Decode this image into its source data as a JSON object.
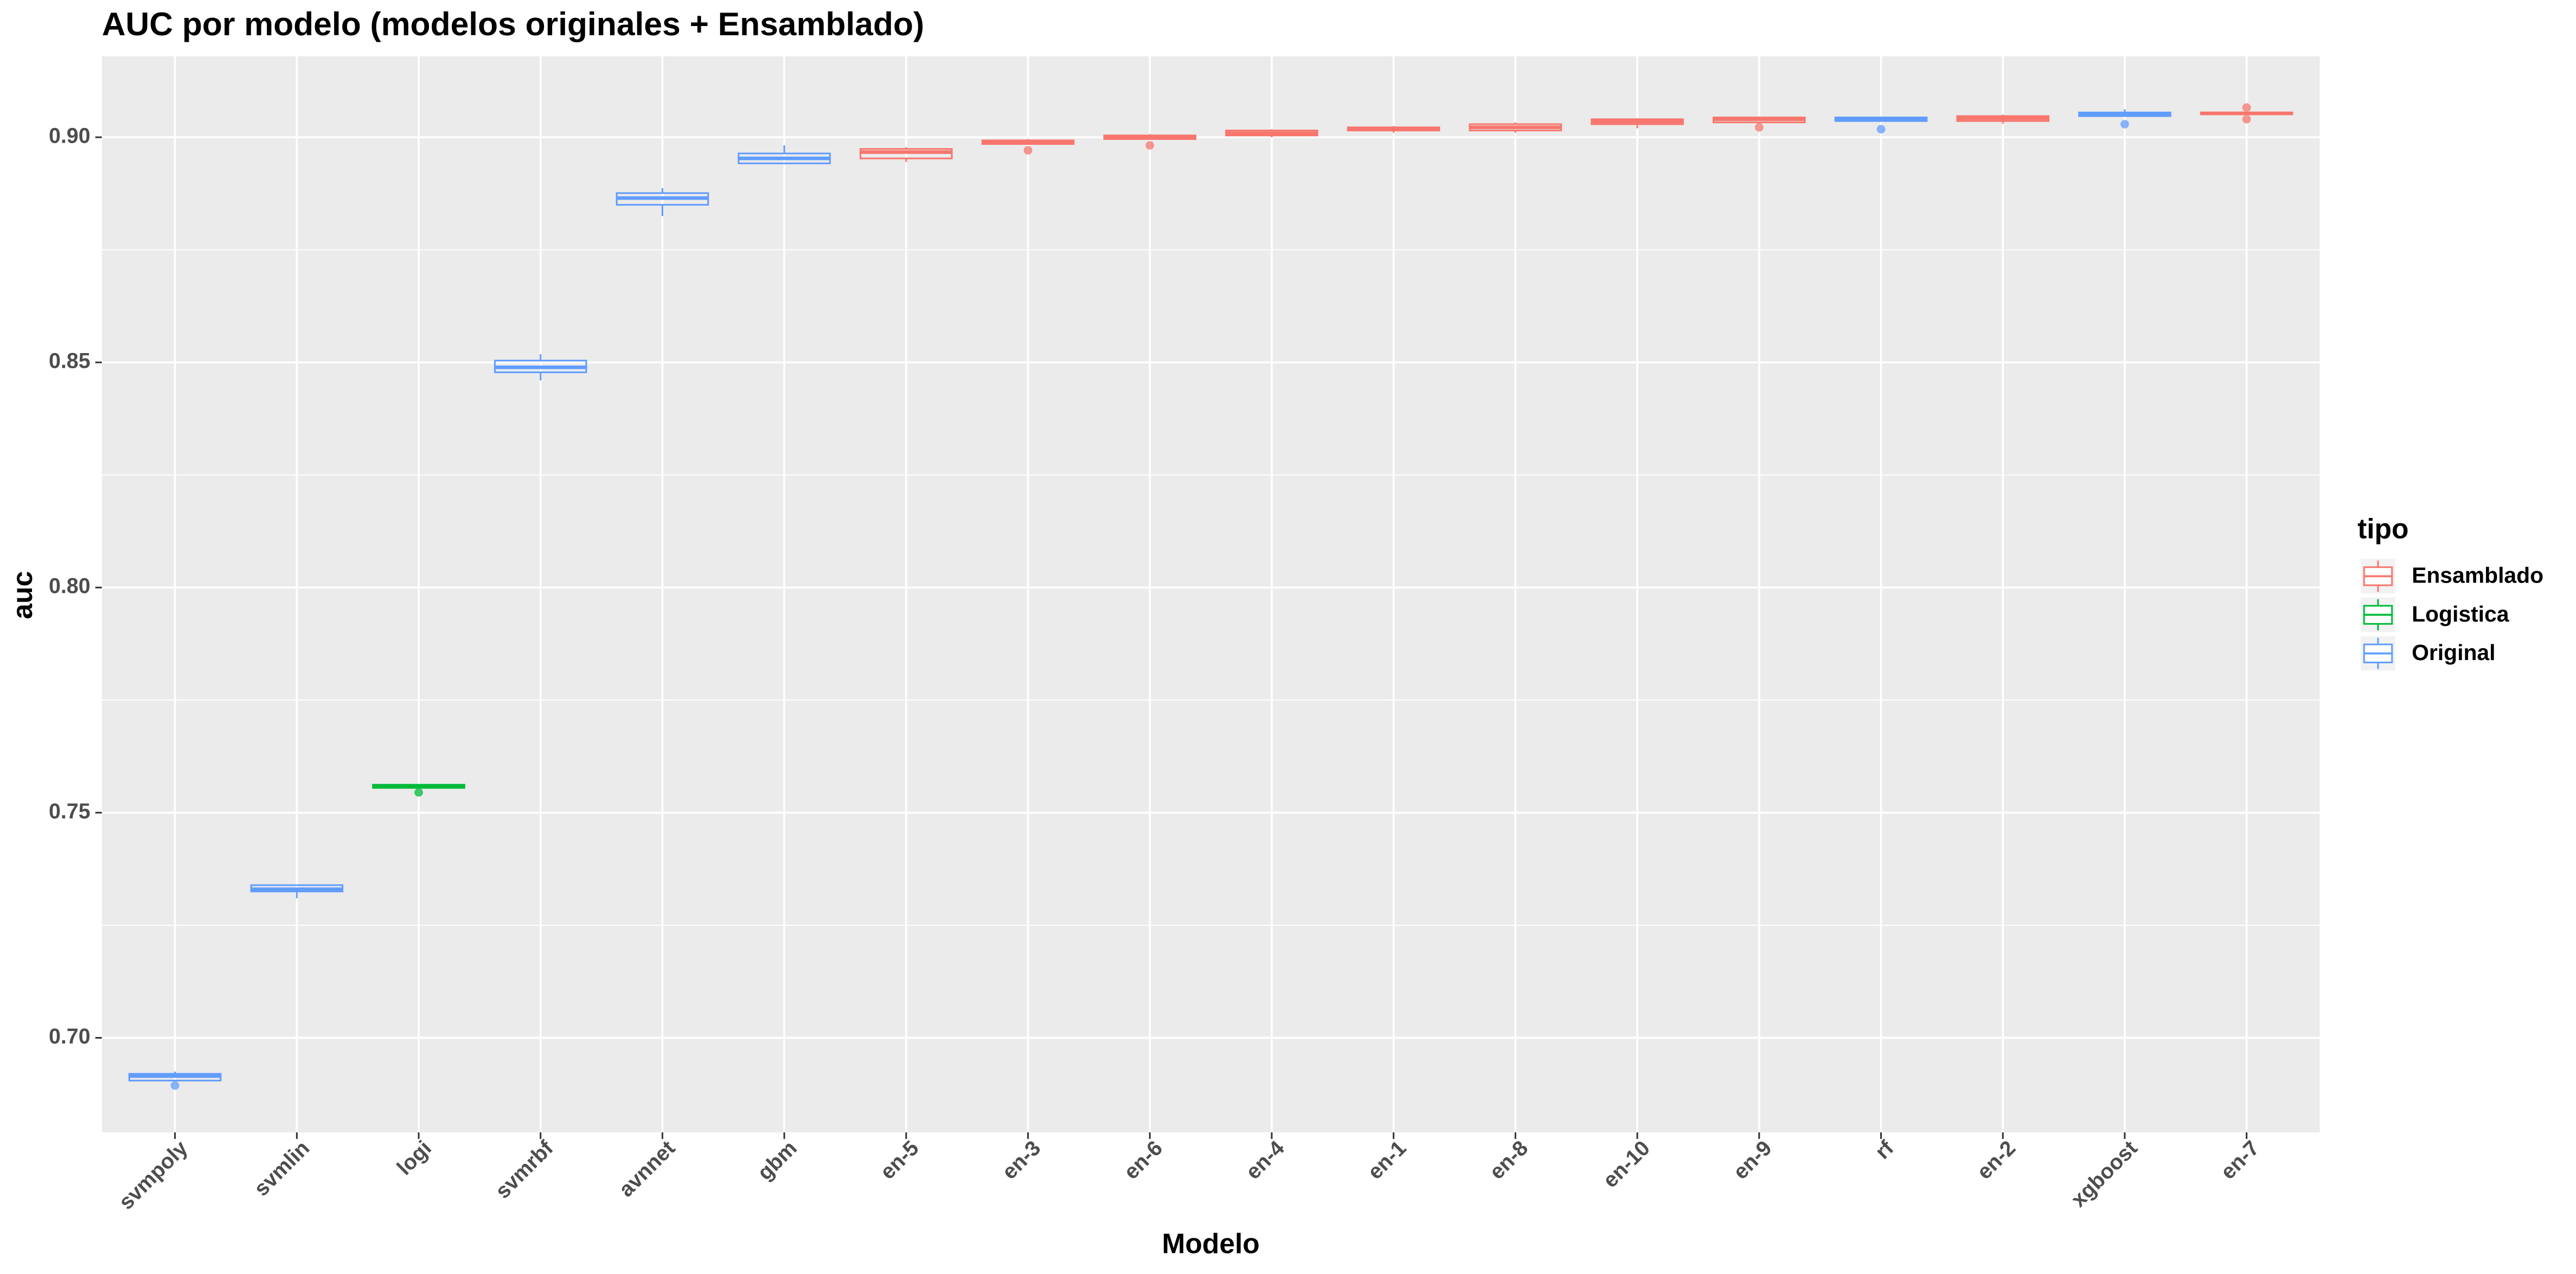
{
  "chart_data": {
    "type": "box",
    "title": "AUC por modelo (modelos originales + Ensamblado)",
    "x_label": "Modelo",
    "y_label": "auc",
    "legend_title": "tipo",
    "categories": [
      "svmpoly",
      "svmlin",
      "logi",
      "svmrbf",
      "avnnet",
      "gbm",
      "en-5",
      "en-3",
      "en-6",
      "en-4",
      "en-1",
      "en-8",
      "en-10",
      "en-9",
      "rf",
      "en-2",
      "xgboost",
      "en-7"
    ],
    "series": [
      {
        "name": "Ensamblado",
        "color": "#F8766D"
      },
      {
        "name": "Logistica",
        "color": "#00BA38"
      },
      {
        "name": "Original",
        "color": "#619CFF"
      }
    ],
    "boxes": [
      {
        "series": 2,
        "min": 0.6905,
        "q1": 0.6905,
        "median": 0.6915,
        "q3": 0.692,
        "max": 0.6925,
        "outliers": [
          0.6894
        ]
      },
      {
        "series": 2,
        "min": 0.731,
        "q1": 0.7325,
        "median": 0.733,
        "q3": 0.7339,
        "max": 0.7339,
        "outliers": []
      },
      {
        "series": 1,
        "min": 0.7555,
        "q1": 0.7555,
        "median": 0.7558,
        "q3": 0.7562,
        "max": 0.7562,
        "outliers": [
          0.7545
        ]
      },
      {
        "series": 2,
        "min": 0.846,
        "q1": 0.8478,
        "median": 0.8489,
        "q3": 0.8504,
        "max": 0.8518,
        "outliers": []
      },
      {
        "series": 2,
        "min": 0.8825,
        "q1": 0.885,
        "median": 0.8865,
        "q3": 0.8876,
        "max": 0.8887,
        "outliers": []
      },
      {
        "series": 2,
        "min": 0.8942,
        "q1": 0.8942,
        "median": 0.8953,
        "q3": 0.8964,
        "max": 0.8982,
        "outliers": []
      },
      {
        "series": 0,
        "min": 0.8945,
        "q1": 0.8953,
        "median": 0.8967,
        "q3": 0.8974,
        "max": 0.8978,
        "outliers": []
      },
      {
        "series": 0,
        "min": 0.8985,
        "q1": 0.8985,
        "median": 0.899,
        "q3": 0.8993,
        "max": 0.8996,
        "outliers": [
          0.8971
        ]
      },
      {
        "series": 0,
        "min": 0.8996,
        "q1": 0.8996,
        "median": 0.9,
        "q3": 0.9004,
        "max": 0.9007,
        "outliers": [
          0.8982
        ]
      },
      {
        "series": 0,
        "min": 0.9,
        "q1": 0.9004,
        "median": 0.9009,
        "q3": 0.9015,
        "max": 0.9018,
        "outliers": []
      },
      {
        "series": 0,
        "min": 0.901,
        "q1": 0.9015,
        "median": 0.9018,
        "q3": 0.9022,
        "max": 0.9025,
        "outliers": []
      },
      {
        "series": 0,
        "min": 0.901,
        "q1": 0.9015,
        "median": 0.9022,
        "q3": 0.9029,
        "max": 0.9033,
        "outliers": []
      },
      {
        "series": 0,
        "min": 0.902,
        "q1": 0.9029,
        "median": 0.9035,
        "q3": 0.904,
        "max": 0.9042,
        "outliers": []
      },
      {
        "series": 0,
        "min": 0.9033,
        "q1": 0.9033,
        "median": 0.904,
        "q3": 0.9044,
        "max": 0.9046,
        "outliers": [
          0.9022
        ]
      },
      {
        "series": 2,
        "min": 0.9036,
        "q1": 0.9036,
        "median": 0.904,
        "q3": 0.9044,
        "max": 0.9044,
        "outliers": [
          0.9018
        ]
      },
      {
        "series": 0,
        "min": 0.903,
        "q1": 0.9036,
        "median": 0.9042,
        "q3": 0.9047,
        "max": 0.905,
        "outliers": []
      },
      {
        "series": 2,
        "min": 0.9047,
        "q1": 0.9047,
        "median": 0.9051,
        "q3": 0.9055,
        "max": 0.9062,
        "outliers": [
          0.9029
        ]
      },
      {
        "series": 0,
        "min": 0.9051,
        "q1": 0.9051,
        "median": 0.9053,
        "q3": 0.9055,
        "max": 0.9055,
        "outliers": [
          0.9066,
          0.904
        ]
      }
    ],
    "ylim": [
      0.679,
      0.918
    ],
    "yticks": [
      {
        "value": 0.7,
        "label": "0.70"
      },
      0.75,
      {
        "value": 0.8,
        "label": "0.80"
      },
      0.85,
      {
        "value": 0.9,
        "label": "0.90"
      }
    ],
    "grid": true
  }
}
